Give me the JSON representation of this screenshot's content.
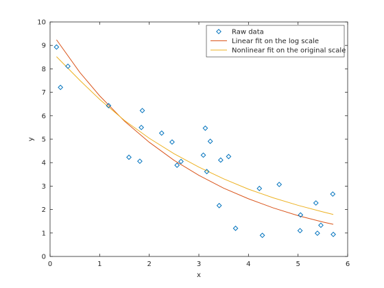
{
  "chart_data": {
    "type": "scatter",
    "xlabel": "x",
    "ylabel": "y",
    "xlim": [
      0,
      6
    ],
    "ylim": [
      0,
      10
    ],
    "xticks": [
      0,
      1,
      2,
      3,
      4,
      5,
      6
    ],
    "yticks": [
      0,
      1,
      2,
      3,
      4,
      5,
      6,
      7,
      8,
      9,
      10
    ],
    "grid": false,
    "legend_position": "top-right",
    "series": [
      {
        "name": "Raw data",
        "kind": "markers",
        "marker": "diamond",
        "color": "#0072BD",
        "points": [
          [
            0.13,
            8.93
          ],
          [
            0.21,
            7.21
          ],
          [
            0.36,
            8.11
          ],
          [
            1.18,
            6.43
          ],
          [
            1.59,
            4.23
          ],
          [
            1.81,
            4.06
          ],
          [
            1.84,
            5.5
          ],
          [
            1.86,
            6.22
          ],
          [
            2.25,
            5.26
          ],
          [
            2.46,
            4.88
          ],
          [
            2.56,
            3.89
          ],
          [
            2.64,
            4.05
          ],
          [
            3.09,
            4.32
          ],
          [
            3.13,
            5.47
          ],
          [
            3.16,
            3.62
          ],
          [
            3.23,
            4.91
          ],
          [
            3.41,
            2.17
          ],
          [
            3.44,
            4.11
          ],
          [
            3.6,
            4.26
          ],
          [
            3.74,
            1.2
          ],
          [
            4.22,
            2.9
          ],
          [
            4.28,
            0.9
          ],
          [
            4.62,
            3.07
          ],
          [
            5.04,
            1.1
          ],
          [
            5.05,
            1.77
          ],
          [
            5.36,
            2.28
          ],
          [
            5.39,
            0.99
          ],
          [
            5.46,
            1.33
          ],
          [
            5.7,
            2.66
          ],
          [
            5.71,
            0.94
          ]
        ]
      },
      {
        "name": "Linear fit on the log scale",
        "kind": "line",
        "color": "#D95319",
        "points": [
          [
            0.13,
            9.24
          ],
          [
            0.6,
            7.85
          ],
          [
            1.0,
            6.85
          ],
          [
            1.5,
            5.77
          ],
          [
            2.0,
            4.87
          ],
          [
            2.5,
            4.1
          ],
          [
            3.0,
            3.46
          ],
          [
            3.5,
            2.91
          ],
          [
            4.0,
            2.46
          ],
          [
            4.5,
            2.07
          ],
          [
            5.0,
            1.74
          ],
          [
            5.5,
            1.47
          ],
          [
            5.71,
            1.37
          ]
        ]
      },
      {
        "name": "Nonlinear fit on the original scale",
        "kind": "line",
        "color": "#EDB120",
        "points": [
          [
            0.13,
            8.52
          ],
          [
            0.6,
            7.51
          ],
          [
            1.0,
            6.7
          ],
          [
            1.5,
            5.8
          ],
          [
            2.0,
            5.04
          ],
          [
            2.5,
            4.38
          ],
          [
            3.0,
            3.81
          ],
          [
            3.5,
            3.31
          ],
          [
            4.0,
            2.87
          ],
          [
            4.5,
            2.5
          ],
          [
            5.0,
            2.18
          ],
          [
            5.5,
            1.9
          ],
          [
            5.71,
            1.79
          ]
        ]
      }
    ]
  }
}
